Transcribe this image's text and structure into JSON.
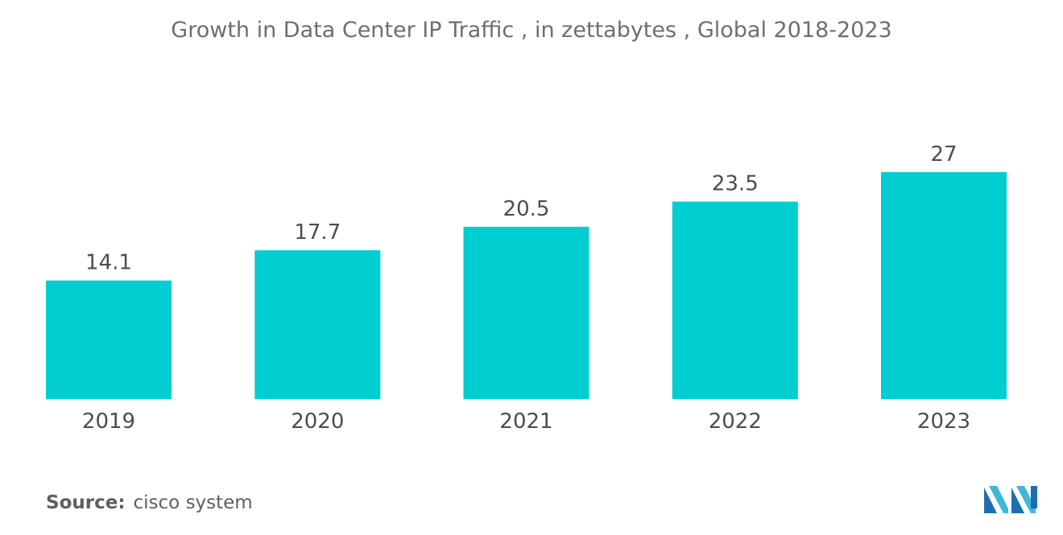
{
  "title": "Growth in Data Center IP Traffic , in zettabytes , Global 2018-2023",
  "source": {
    "label": "Source:",
    "text": "cisco system"
  },
  "colors": {
    "bar": "#00ced1",
    "text": "#4d4d4d",
    "title": "#6e6e6e"
  },
  "logo": {
    "icon": "mordor-intelligence-logo"
  },
  "chart_data": {
    "type": "bar",
    "title": "Growth in Data Center IP Traffic , in zettabytes , Global 2018-2023",
    "categories": [
      "2019",
      "2020",
      "2021",
      "2022",
      "2023"
    ],
    "values": [
      14.1,
      17.7,
      20.5,
      23.5,
      27
    ],
    "value_labels": [
      "14.1",
      "17.7",
      "20.5",
      "23.5",
      "27"
    ],
    "xlabel": "",
    "ylabel": "",
    "ylim": [
      0,
      27
    ],
    "grid": false,
    "legend": "none"
  }
}
